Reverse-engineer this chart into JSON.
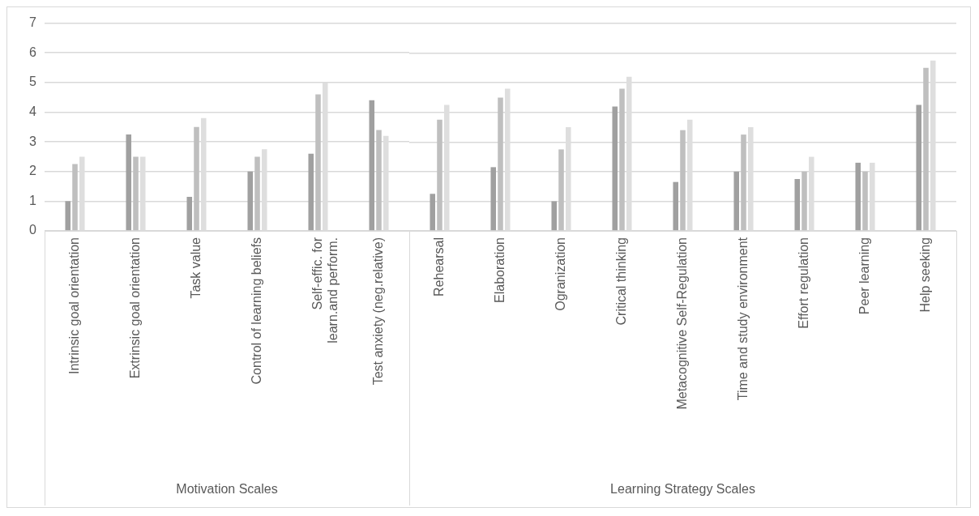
{
  "chart_data": [
    {
      "type": "bar",
      "xlabel": "Motivation Scales",
      "categories": [
        "Intrinsic goal orientation",
        "Extrinsic goal orientation",
        "Task value",
        "Control of learning beliefs",
        "Self-effic. for learn.and perform.",
        "Test anxiety (neg.relative)"
      ],
      "series": [
        {
          "color": "#a0a0a0",
          "values": [
            1,
            3.25,
            1.15,
            2,
            2.6,
            4.4
          ]
        },
        {
          "color": "#bfbfbf",
          "values": [
            2.25,
            2.5,
            3.5,
            2.5,
            4.6,
            3.4
          ]
        },
        {
          "color": "#dedede",
          "values": [
            2.5,
            2.5,
            3.8,
            2.75,
            5,
            3.2
          ]
        }
      ],
      "ylim": [
        0,
        7
      ],
      "yticks": [
        0,
        1,
        2,
        3,
        4,
        5,
        6,
        7
      ],
      "grid": "y",
      "legend": false
    },
    {
      "type": "bar",
      "xlabel": "Learning Strategy Scales",
      "categories": [
        "Rehearsal",
        "Elaboration",
        "Ogranization",
        "Critical thinking",
        "Metacognitive Self-Regulation",
        "Time and study environment",
        "Effort regulation",
        "Peer learning",
        "Help seeking"
      ],
      "series": [
        {
          "color": "#a0a0a0",
          "values": [
            1.25,
            2.15,
            1,
            4.2,
            1.65,
            2,
            1.75,
            2.3,
            4.25
          ]
        },
        {
          "color": "#bfbfbf",
          "values": [
            3.75,
            4.5,
            2.75,
            4.8,
            3.4,
            3.25,
            2,
            2,
            5.5
          ]
        },
        {
          "color": "#dedede",
          "values": [
            4.25,
            4.8,
            3.5,
            5.2,
            3.75,
            3.5,
            2.5,
            2.3,
            5.75
          ]
        }
      ],
      "ylim": [
        0,
        7
      ],
      "yticks": [
        0,
        1,
        2,
        3,
        4,
        5,
        6,
        7
      ],
      "grid": "y",
      "legend": false,
      "tick_labels": "x"
    }
  ]
}
